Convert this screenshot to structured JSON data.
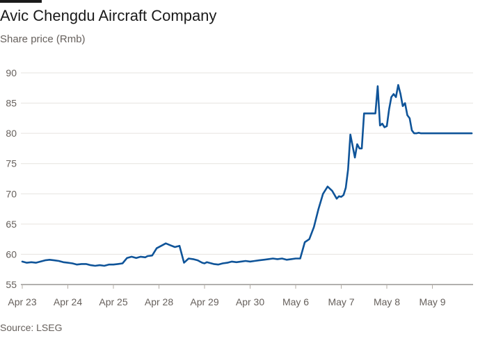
{
  "chart_data": {
    "type": "line",
    "title": "Avic Chengdu Aircraft Company",
    "subtitle": "Share price (Rmb)",
    "source": "Source: LSEG",
    "ylim": [
      55,
      90
    ],
    "yticks": [
      55,
      60,
      65,
      70,
      75,
      80,
      85,
      90
    ],
    "categories": [
      "Apr 23",
      "Apr 24",
      "Apr 25",
      "Apr 28",
      "Apr 29",
      "Apr 30",
      "May 6",
      "May 7",
      "May 8",
      "May 9"
    ],
    "x_domain": [
      0,
      10
    ],
    "colors": {
      "line": "#0f5499"
    },
    "series": [
      {
        "name": "Avic Chengdu Aircraft Company",
        "x": [
          0,
          0.1,
          0.2,
          0.3,
          0.4,
          0.5,
          0.6,
          0.7,
          0.8,
          0.9,
          1.0,
          1.1,
          1.2,
          1.3,
          1.4,
          1.5,
          1.6,
          1.7,
          1.8,
          1.9,
          2.0,
          2.1,
          2.2,
          2.3,
          2.4,
          2.5,
          2.6,
          2.7,
          2.75,
          2.85,
          2.95,
          3.05,
          3.15,
          3.25,
          3.35,
          3.45,
          3.55,
          3.65,
          3.75,
          3.85,
          3.9,
          3.95,
          4.0,
          4.05,
          4.1,
          4.2,
          4.3,
          4.4,
          4.5,
          4.6,
          4.7,
          4.8,
          4.9,
          5.0,
          5.1,
          5.2,
          5.3,
          5.4,
          5.5,
          5.6,
          5.7,
          5.8,
          5.9,
          6.0,
          6.1,
          6.2,
          6.3,
          6.4,
          6.5,
          6.6,
          6.7,
          6.8,
          6.9,
          6.95,
          7.0,
          7.05,
          7.1,
          7.15,
          7.2,
          7.3,
          7.35,
          7.4,
          7.45,
          7.5,
          7.55,
          7.6,
          7.7,
          7.75,
          7.8,
          7.85,
          7.9,
          7.95,
          8.0,
          8.05,
          8.1,
          8.15,
          8.2,
          8.25,
          8.3,
          8.35,
          8.4,
          8.45,
          8.5,
          8.55,
          8.6,
          8.65,
          8.7,
          8.75,
          8.8,
          8.85,
          8.9,
          8.95,
          9.0,
          9.05,
          9.1,
          9.15,
          9.2,
          9.25,
          9.3,
          9.35,
          9.4,
          9.45,
          9.5,
          9.55,
          9.6,
          9.65,
          9.7,
          9.75,
          9.8,
          9.85,
          9.9,
          9.95
        ],
        "values": [
          58.8,
          58.6,
          58.7,
          58.6,
          58.8,
          59.0,
          59.1,
          59.0,
          58.9,
          58.7,
          58.6,
          58.5,
          58.3,
          58.4,
          58.4,
          58.2,
          58.1,
          58.2,
          58.1,
          58.3,
          58.3,
          58.4,
          58.5,
          59.4,
          59.6,
          59.4,
          59.6,
          59.5,
          59.7,
          59.8,
          61.0,
          61.4,
          61.8,
          61.5,
          61.2,
          61.4,
          58.6,
          59.3,
          59.2,
          59.0,
          58.8,
          58.6,
          58.5,
          58.7,
          58.6,
          58.4,
          58.3,
          58.5,
          58.6,
          58.8,
          58.7,
          58.8,
          58.9,
          58.8,
          58.9,
          59.0,
          59.1,
          59.2,
          59.3,
          59.2,
          59.3,
          59.1,
          59.2,
          59.3,
          59.3,
          62.0,
          62.5,
          64.5,
          67.5,
          70.0,
          71.2,
          70.5,
          69.2,
          69.6,
          69.5,
          69.8,
          71.0,
          74.0,
          79.8,
          76.0,
          78.2,
          77.5,
          77.5,
          83.3,
          83.3,
          83.3,
          83.3,
          83.3,
          87.8,
          81.3,
          81.6,
          81.0,
          81.2,
          84.0,
          86.0,
          86.5,
          86.0,
          88.0,
          86.5,
          84.5,
          85.0,
          83.0,
          82.5,
          80.5,
          80.0,
          80.0,
          80.1,
          80.0,
          80.0,
          80.0,
          80.0,
          80.0,
          80.0,
          80.0,
          80.0,
          80.0,
          80.0,
          80.0,
          80.0,
          80.0,
          80.0,
          80.0,
          80.0,
          80.0,
          80.0,
          80.0,
          80.0,
          80.0,
          80.0,
          80.0,
          80.0,
          80.0
        ]
      }
    ]
  }
}
